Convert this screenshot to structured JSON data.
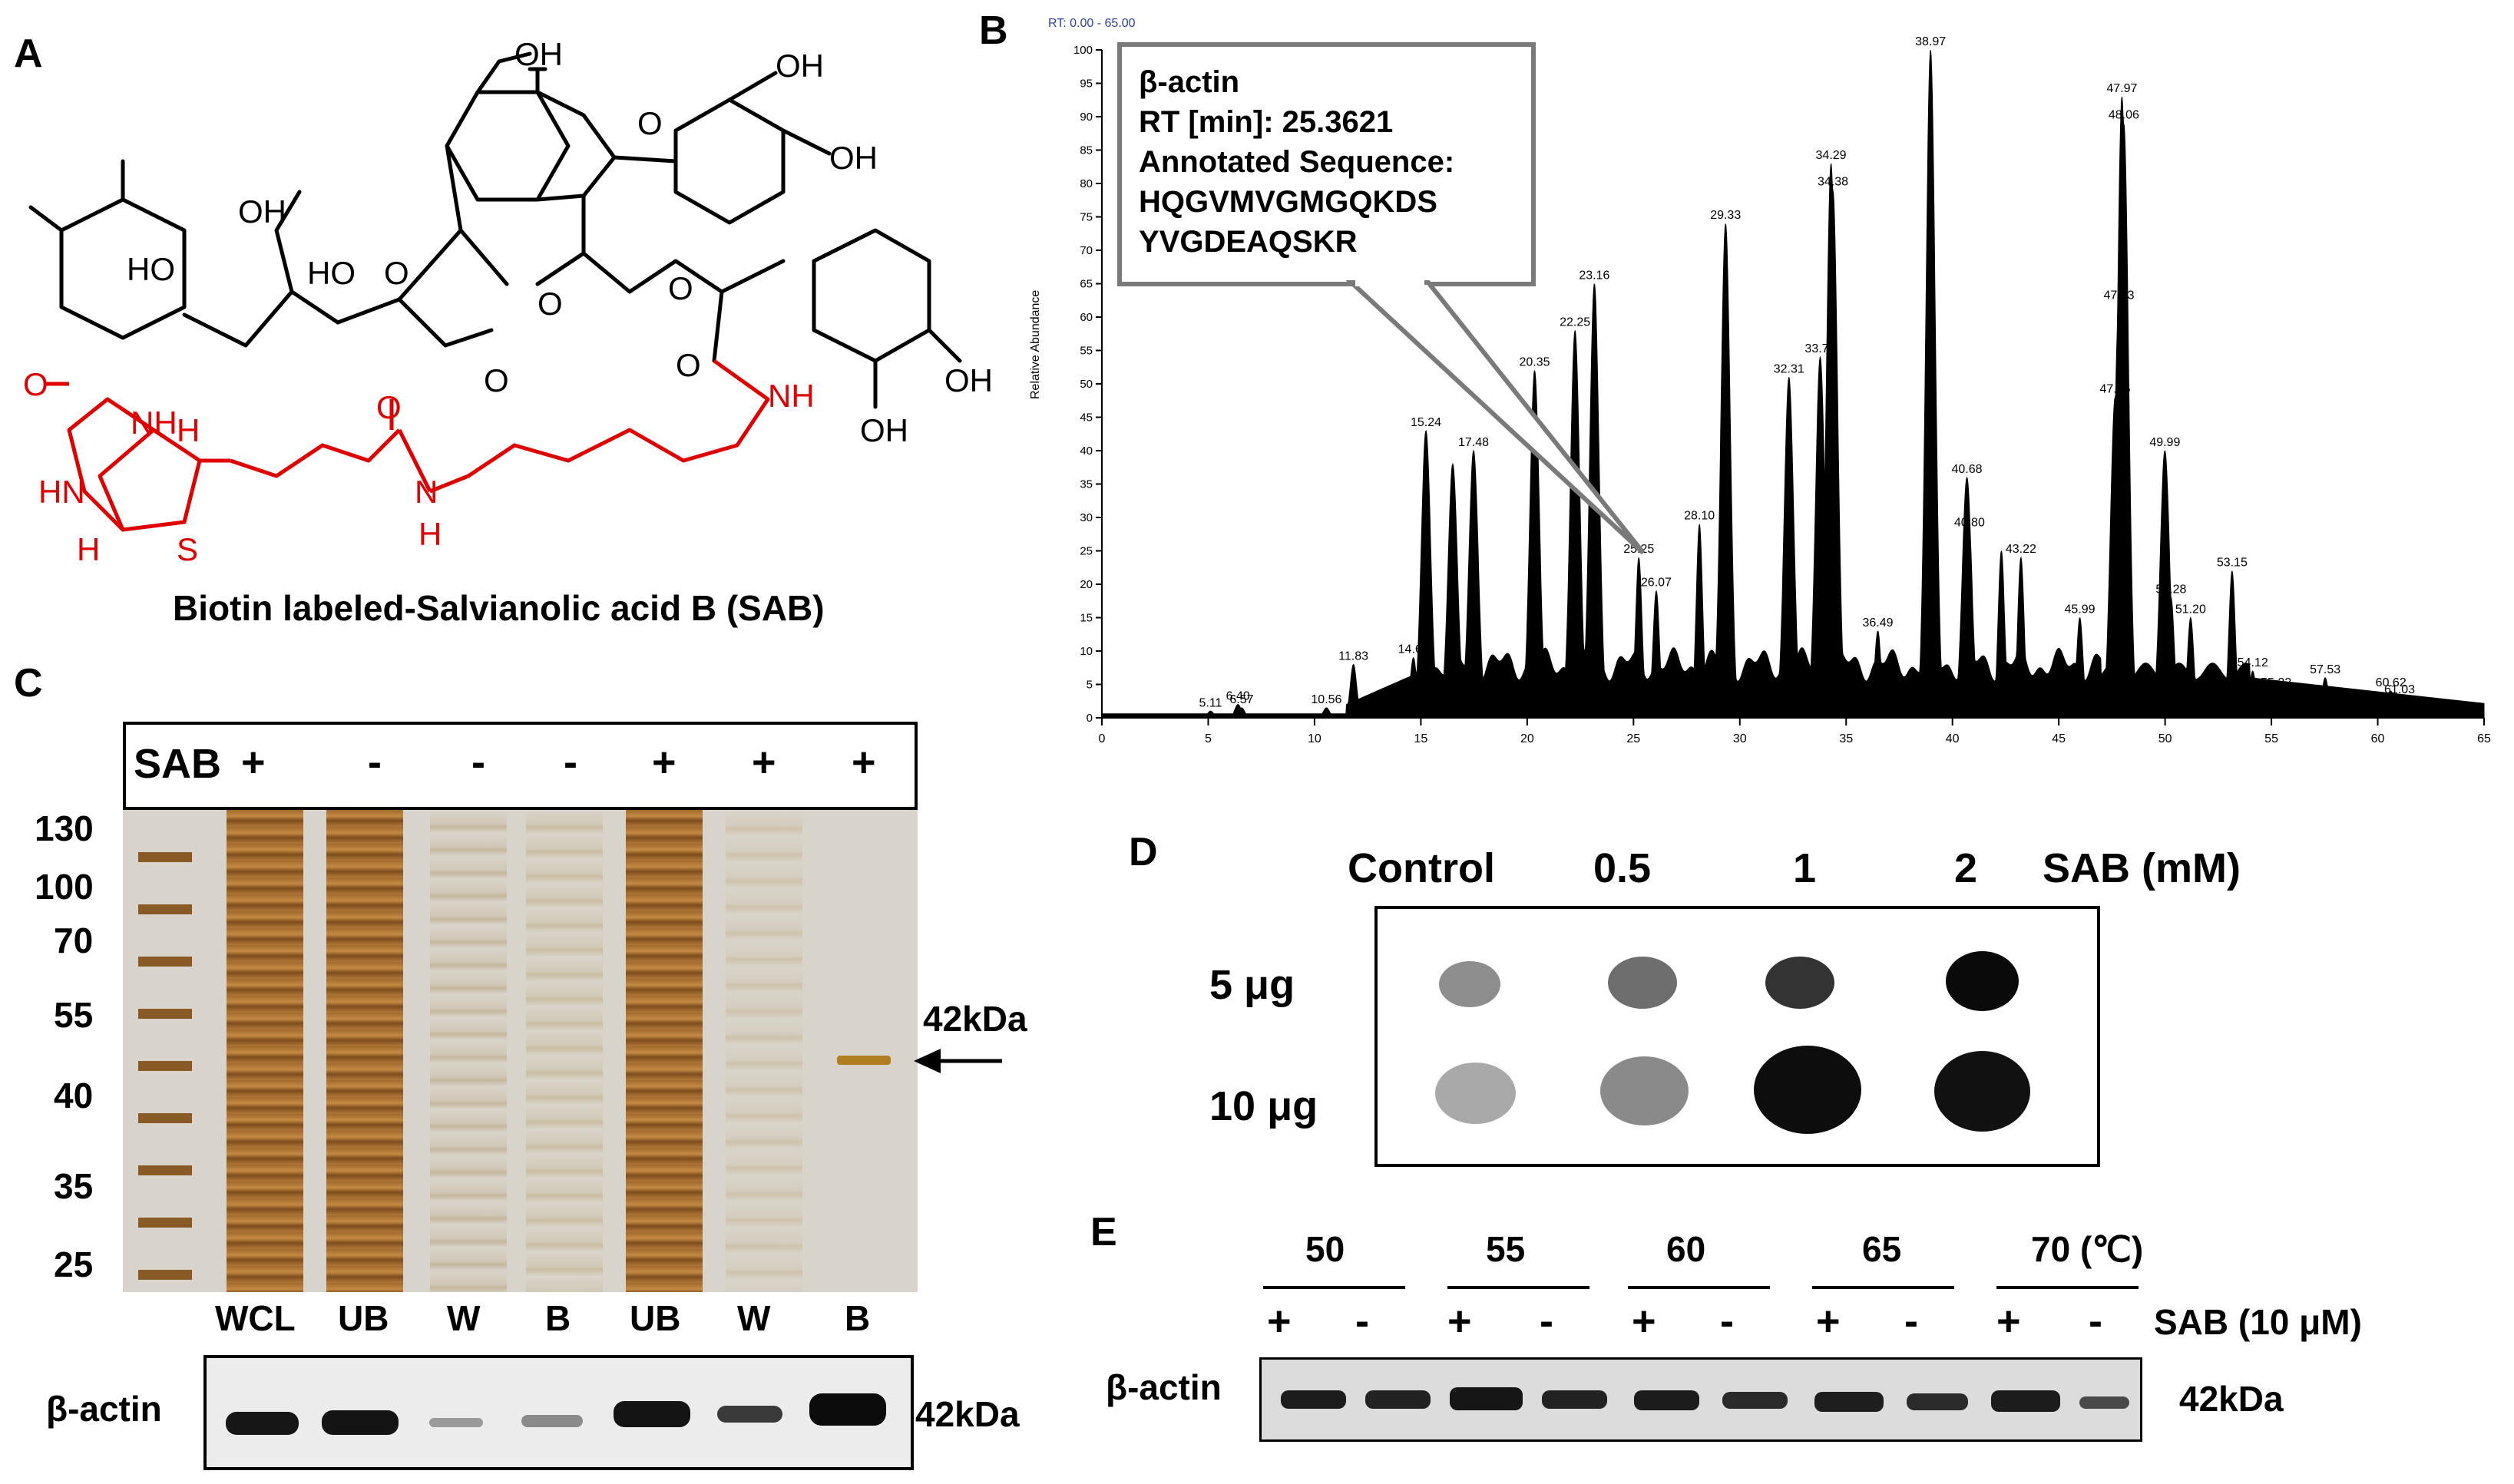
{
  "panels": {
    "A": {
      "letter": "A",
      "caption": "Biotin labeled-Salvianolic acid B (SAB)",
      "atom_labels": [
        "OH",
        "OH",
        "OH",
        "HO",
        "OH",
        "HO",
        "O",
        "HO",
        "O",
        "O",
        "O",
        "O",
        "O",
        "O",
        "OH",
        "NH",
        "H",
        "HN",
        "H",
        "S",
        "O",
        "N",
        "H",
        "NH",
        "H",
        "OH"
      ]
    },
    "B": {
      "letter": "B",
      "header": "RT: 0.00 - 65.00",
      "ylabel": "Relative Abundance",
      "callout": {
        "title": "β-actin",
        "rt": "RT [min]: 25.3621",
        "seq_label": "Annotated Sequence:",
        "seq1": "HQGVMVGMGQKDS",
        "seq2": "YVGDEAQSKR"
      }
    },
    "C": {
      "letter": "C",
      "sab_label": "SAB",
      "signs": [
        "+",
        "-",
        "-",
        "-",
        "+",
        "+",
        "+"
      ],
      "markers": [
        "130",
        "100",
        "70",
        "55",
        "40",
        "35",
        "25"
      ],
      "lanes": [
        "WCL",
        "UB",
        "W",
        "B",
        "UB",
        "W",
        "B"
      ],
      "band_label": "42kDa",
      "blot_label": "β-actin",
      "blot_kda": "42kDa"
    },
    "D": {
      "letter": "D",
      "columns": [
        "Control",
        "0.5",
        "1",
        "2"
      ],
      "unit": "SAB (mM)",
      "rows": [
        "5 μg",
        "10 μg"
      ],
      "spot_intensity": [
        [
          0.45,
          0.6,
          0.8,
          1.0
        ],
        [
          0.35,
          0.5,
          1.0,
          0.95
        ]
      ]
    },
    "E": {
      "letter": "E",
      "temps": [
        "50",
        "55",
        "60",
        "65",
        "70 (℃)"
      ],
      "signs": [
        "+",
        "-",
        "+",
        "-",
        "+",
        "-",
        "+",
        "-",
        "+",
        "-"
      ],
      "treatment": "SAB (10 μM)",
      "blot_label": "β-actin",
      "kda": "42kDa"
    }
  },
  "chart_data": {
    "type": "area",
    "title": "RT: 0.00 - 65.00",
    "xlabel": "",
    "ylabel": "Relative Abundance",
    "xlim": [
      0,
      65
    ],
    "ylim": [
      0,
      100
    ],
    "xticks": [
      0,
      5,
      10,
      15,
      20,
      25,
      30,
      35,
      40,
      45,
      50,
      55,
      60,
      65
    ],
    "yticks": [
      0,
      5,
      10,
      15,
      20,
      25,
      30,
      35,
      40,
      45,
      50,
      55,
      60,
      65,
      70,
      75,
      80,
      85,
      90,
      95,
      100
    ],
    "peaks": [
      {
        "x": 5.11,
        "y": 1,
        "label": "5.11"
      },
      {
        "x": 6.4,
        "y": 2,
        "label": "6.40"
      },
      {
        "x": 6.57,
        "y": 1.5,
        "label": "6.57"
      },
      {
        "x": 10.56,
        "y": 1.5,
        "label": "10.56"
      },
      {
        "x": 11.83,
        "y": 8,
        "label": "11.83"
      },
      {
        "x": 14.65,
        "y": 9,
        "label": "14.65"
      },
      {
        "x": 15.24,
        "y": 43,
        "label": "15.24"
      },
      {
        "x": 16.5,
        "y": 38,
        "label": ""
      },
      {
        "x": 17.48,
        "y": 40,
        "label": "17.48"
      },
      {
        "x": 20.35,
        "y": 52,
        "label": "20.35"
      },
      {
        "x": 22.25,
        "y": 58,
        "label": "22.25"
      },
      {
        "x": 23.16,
        "y": 65,
        "label": "23.16"
      },
      {
        "x": 25.25,
        "y": 24,
        "label": "25.25"
      },
      {
        "x": 26.07,
        "y": 19,
        "label": "26.07"
      },
      {
        "x": 28.1,
        "y": 29,
        "label": "28.10"
      },
      {
        "x": 29.33,
        "y": 74,
        "label": "29.33"
      },
      {
        "x": 32.31,
        "y": 51,
        "label": "32.31"
      },
      {
        "x": 33.78,
        "y": 54,
        "label": "33.78"
      },
      {
        "x": 34.29,
        "y": 83,
        "label": "34.29"
      },
      {
        "x": 34.38,
        "y": 79,
        "label": "34.38"
      },
      {
        "x": 36.49,
        "y": 13,
        "label": "36.49"
      },
      {
        "x": 38.97,
        "y": 100,
        "label": "38.97"
      },
      {
        "x": 40.68,
        "y": 36,
        "label": "40.68"
      },
      {
        "x": 40.8,
        "y": 28,
        "label": "40.80"
      },
      {
        "x": 42.3,
        "y": 25,
        "label": ""
      },
      {
        "x": 43.22,
        "y": 24,
        "label": "43.22"
      },
      {
        "x": 45.99,
        "y": 15,
        "label": "45.99"
      },
      {
        "x": 47.65,
        "y": 48,
        "label": "47.65"
      },
      {
        "x": 47.83,
        "y": 62,
        "label": "47.83"
      },
      {
        "x": 47.97,
        "y": 93,
        "label": "47.97"
      },
      {
        "x": 48.06,
        "y": 89,
        "label": "48.06"
      },
      {
        "x": 49.99,
        "y": 40,
        "label": "49.99"
      },
      {
        "x": 50.28,
        "y": 18,
        "label": "50.28"
      },
      {
        "x": 51.2,
        "y": 15,
        "label": "51.20"
      },
      {
        "x": 53.15,
        "y": 22,
        "label": "53.15"
      },
      {
        "x": 54.12,
        "y": 7,
        "label": "54.12"
      },
      {
        "x": 55.22,
        "y": 4,
        "label": "55.22"
      },
      {
        "x": 57.53,
        "y": 6,
        "label": "57.53"
      },
      {
        "x": 60.62,
        "y": 4,
        "label": "60.62"
      },
      {
        "x": 61.03,
        "y": 3,
        "label": "61.03"
      }
    ]
  }
}
